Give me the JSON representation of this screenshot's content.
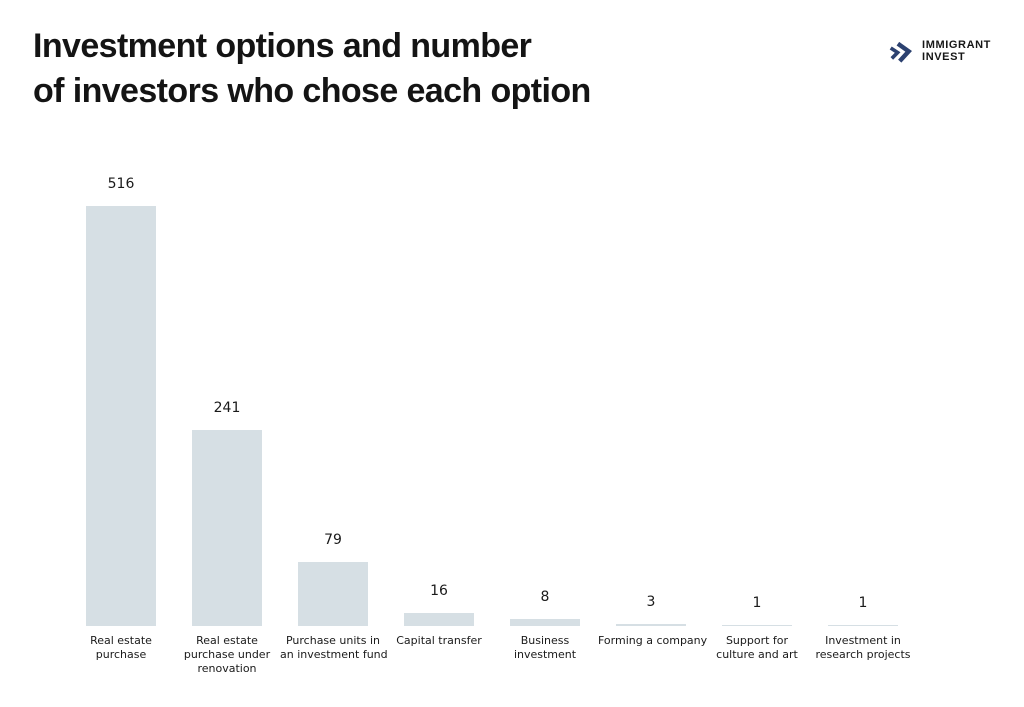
{
  "header": {
    "title_line1": "Investment options and number",
    "title_line2": "of investors who chose each option"
  },
  "logo": {
    "name_line1": "IMMIGRANT",
    "name_line2": "INVEST",
    "icon": "double-chevron-icon",
    "icon_color": "#2c4170"
  },
  "colors": {
    "background": "#ffffff",
    "bar_fill": "#d6dfe4",
    "title_text": "#141414",
    "value_text": "#1a1a1a",
    "category_text": "#1a1a1a"
  },
  "chart_data": {
    "type": "bar",
    "title": "Investment options and number of investors who chose each option",
    "categories": [
      "Real estate purchase",
      "Real estate purchase under renovation",
      "Purchase units in an investment fund",
      "Capital transfer",
      "Business investment",
      "Forming a company",
      "Support for culture and art",
      "Investment in research projects"
    ],
    "category_lines": [
      [
        "Real estate",
        "purchase"
      ],
      [
        "Real estate",
        "purchase under",
        "renovation"
      ],
      [
        "Purchase units in",
        "an investment fund"
      ],
      [
        "Capital transfer"
      ],
      [
        "Business",
        "investment"
      ],
      [
        "Forming a company"
      ],
      [
        "Support for",
        "culture and art"
      ],
      [
        "Investment in",
        "research projects"
      ]
    ],
    "values": [
      516,
      241,
      79,
      16,
      8,
      3,
      1,
      1
    ],
    "value_labels": [
      "516",
      "241",
      "79",
      "16",
      "8",
      "3",
      "1",
      "1"
    ],
    "ylim": [
      0,
      516
    ],
    "grid": false,
    "legend": false,
    "value_labels_shown": true,
    "bar_color": "#d6dfe4"
  }
}
